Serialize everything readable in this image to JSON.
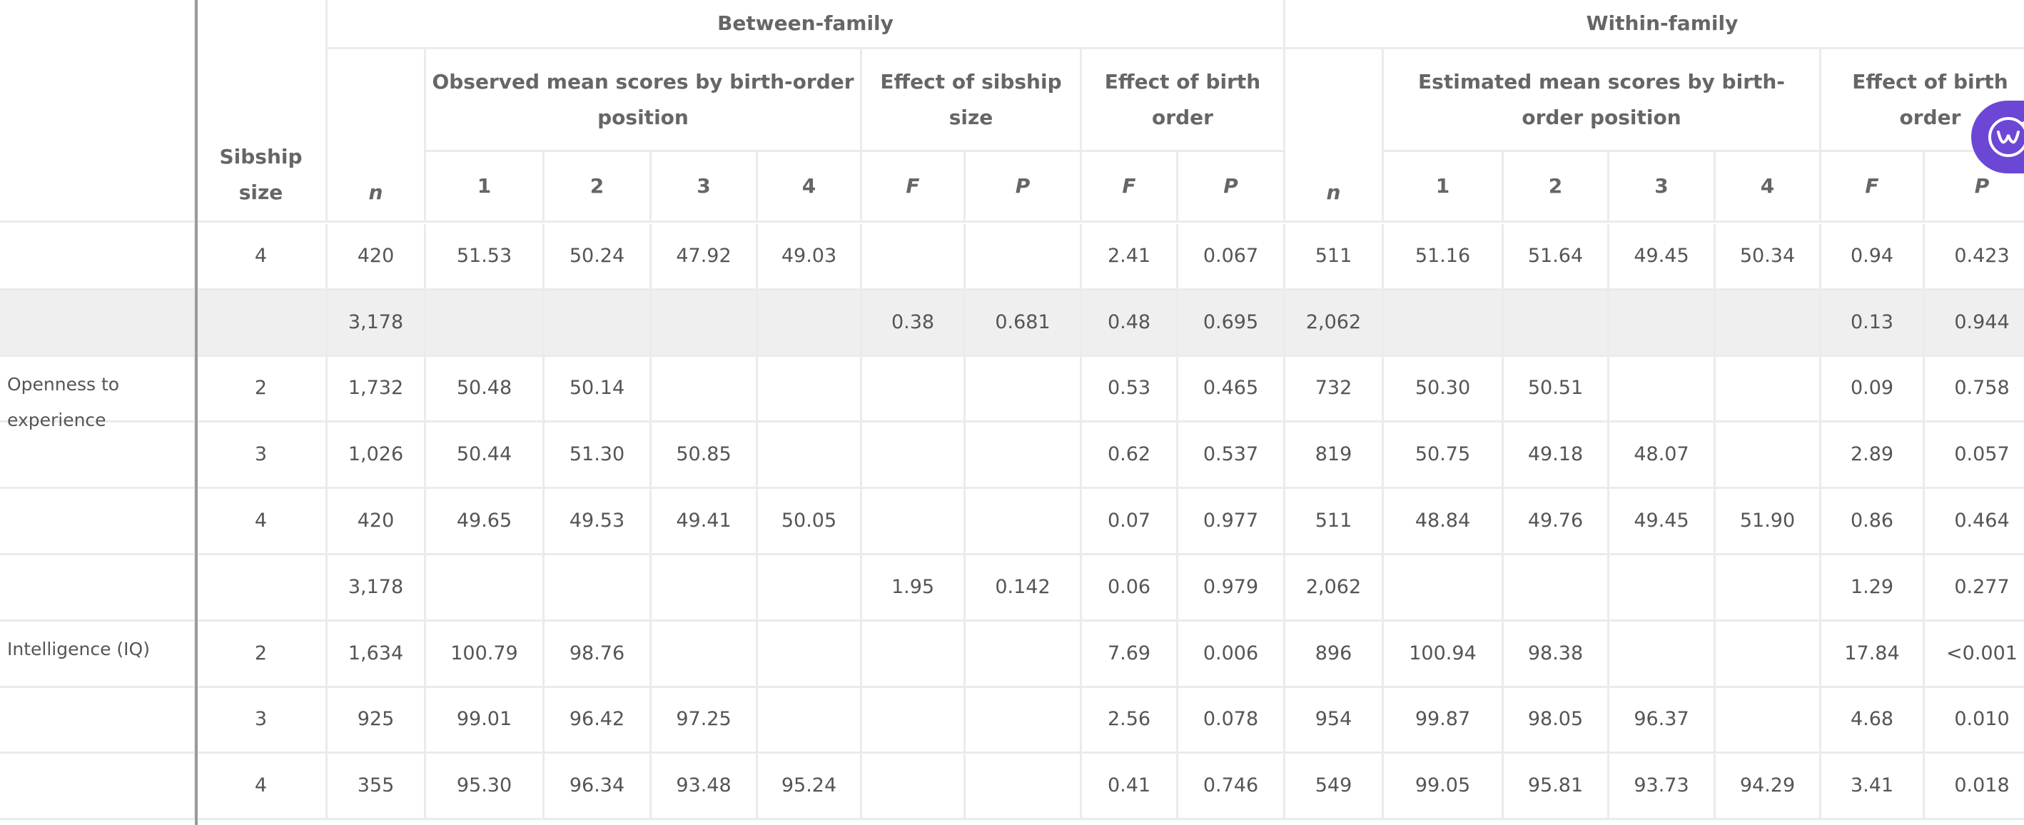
{
  "table": {
    "top": [
      "Between-family",
      "Within-family"
    ],
    "sibship_header": "Sibship size",
    "groups": [
      "Observed mean scores by birth-order position",
      "Effect of sibship size",
      "Effect of birth order",
      "Estimated mean scores by birth-order position",
      "Effect of birth order"
    ],
    "columns": [
      "n",
      "1",
      "2",
      "3",
      "4",
      "F",
      "P",
      "F",
      "P",
      "n",
      "1",
      "2",
      "3",
      "4",
      "F",
      "P"
    ],
    "rows": [
      [
        null,
        "4",
        "420",
        "51.53",
        "50.24",
        "47.92",
        "49.03",
        null,
        null,
        "2.41",
        "0.067",
        "511",
        "51.16",
        "51.64",
        "49.45",
        "50.34",
        "0.94",
        "0.423"
      ],
      [
        null,
        null,
        "3,178",
        null,
        null,
        null,
        null,
        "0.38",
        "0.681",
        "0.48",
        "0.695",
        "2,062",
        null,
        null,
        null,
        null,
        "0.13",
        "0.944"
      ],
      [
        "Openness to experience",
        "2",
        "1,732",
        "50.48",
        "50.14",
        null,
        null,
        null,
        null,
        "0.53",
        "0.465",
        "732",
        "50.30",
        "50.51",
        null,
        null,
        "0.09",
        "0.758"
      ],
      [
        null,
        "3",
        "1,026",
        "50.44",
        "51.30",
        "50.85",
        null,
        null,
        null,
        "0.62",
        "0.537",
        "819",
        "50.75",
        "49.18",
        "48.07",
        null,
        "2.89",
        "0.057"
      ],
      [
        null,
        "4",
        "420",
        "49.65",
        "49.53",
        "49.41",
        "50.05",
        null,
        null,
        "0.07",
        "0.977",
        "511",
        "48.84",
        "49.76",
        "49.45",
        "51.90",
        "0.86",
        "0.464"
      ],
      [
        null,
        null,
        "3,178",
        null,
        null,
        null,
        null,
        "1.95",
        "0.142",
        "0.06",
        "0.979",
        "2,062",
        null,
        null,
        null,
        null,
        "1.29",
        "0.277"
      ],
      [
        "Intelligence (IQ)",
        "2",
        "1,634",
        "100.79",
        "98.76",
        null,
        null,
        null,
        null,
        "7.69",
        "0.006",
        "896",
        "100.94",
        "98.38",
        null,
        null,
        "17.84",
        "<0.001"
      ],
      [
        null,
        "3",
        "925",
        "99.01",
        "96.42",
        "97.25",
        null,
        null,
        null,
        "2.56",
        "0.078",
        "954",
        "99.87",
        "98.05",
        "96.37",
        null,
        "4.68",
        "0.010"
      ],
      [
        null,
        "4",
        "355",
        "95.30",
        "96.34",
        "93.48",
        "95.24",
        null,
        null,
        "0.41",
        "0.746",
        "549",
        "99.05",
        "95.81",
        "93.73",
        "94.29",
        "3.41",
        "0.018"
      ]
    ]
  }
}
